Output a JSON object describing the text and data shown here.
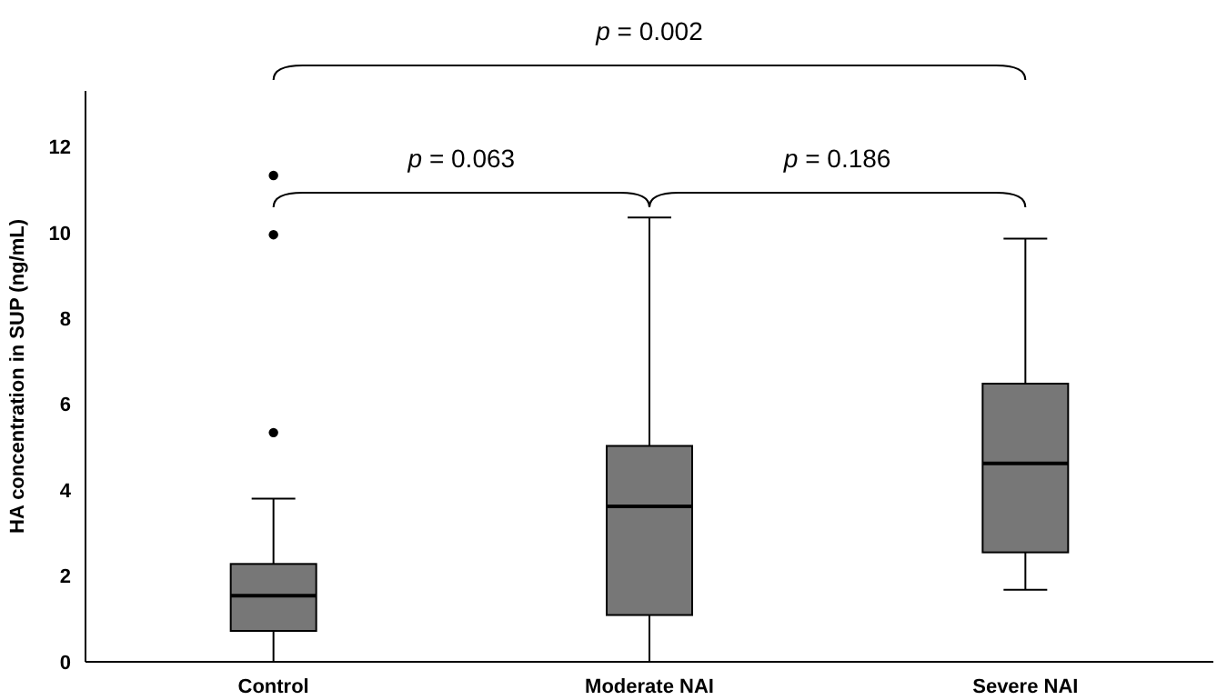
{
  "chart_data": {
    "type": "box",
    "ylabel": "HA concentration in SUP (ng/mL)",
    "categories": [
      "Control",
      "Moderate NAI",
      "Severe NAI"
    ],
    "color": "#777777",
    "boxes": [
      {
        "low": 0,
        "q1": 0.72,
        "median": 1.54,
        "q3": 2.28,
        "high": 3.8,
        "outliers": [
          5.34,
          9.95,
          11.33
        ]
      },
      {
        "low": 0,
        "q1": 1.09,
        "median": 3.62,
        "q3": 5.03,
        "high": 10.35
      },
      {
        "low": 1.68,
        "q1": 2.55,
        "median": 4.62,
        "q3": 6.48,
        "high": 9.86
      }
    ],
    "ylim": [
      0,
      13.3
    ],
    "yticks": [
      0,
      2,
      4,
      6,
      8,
      10,
      12
    ],
    "grid": false,
    "annotations": [
      "p = 0.002",
      "p = 0.063",
      "p = 0.186"
    ]
  }
}
